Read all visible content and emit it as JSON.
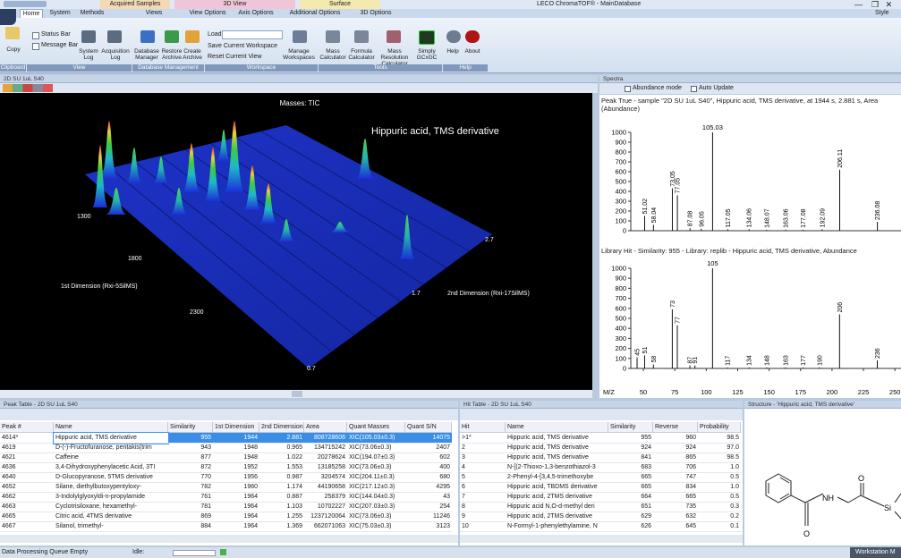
{
  "window": {
    "context_tabs": [
      "Acquired Samples",
      "3D View",
      "Surface"
    ],
    "app_title": "LECO ChromaTOF® - MainDatabase",
    "style": "Style"
  },
  "ribbon": {
    "tabs": [
      "Home",
      "System",
      "Methods",
      "Views",
      "View Options",
      "Axis Options",
      "Additional Options",
      "3D Options"
    ],
    "clipboard": {
      "label": "Clipboard",
      "copy": "Copy"
    },
    "view": {
      "label": "View",
      "status_bar": "Status Bar",
      "message_bar": "Message Bar",
      "system_log": "System Log",
      "acquisition_log": "Acquisition Log"
    },
    "database": {
      "label": "Database Management",
      "manager": "Database Manager",
      "restore": "Restore Archive",
      "create": "Create Archive"
    },
    "workspace": {
      "label": "Workspace",
      "load": "Load:",
      "save": "Save Current Workspace",
      "reset": "Reset Current View",
      "manage": "Manage Workspaces"
    },
    "tools": {
      "label": "Tools",
      "mass": "Mass Calculator",
      "formula": "Formula Calculator",
      "resolution": "Mass Resolution Calculator",
      "gcxgc": "Simply GCxGC"
    },
    "help": {
      "label": "Help",
      "help": "Help",
      "about": "About"
    }
  },
  "view3d": {
    "panel_title": "2D SU 1uL S40",
    "masses": "Masses: TIC",
    "annotation": "Hippuric acid, TMS derivative",
    "first_dim_label": "1st Dimension (Rxi-5SilMS)",
    "first_dim_ticks": [
      "1300",
      "1800",
      "2300"
    ],
    "second_dim_label": "2nd Dimension (Rxi-17SilMS)",
    "second_dim_ticks": [
      "2.7",
      "1.7",
      "0.7"
    ]
  },
  "spectra": {
    "panel_title": "Spectra",
    "abundance_mode": "Abundance mode",
    "auto_update": "Auto Update",
    "peak_true": {
      "title": "Peak True - sample \"2D SU 1uL S40\", Hippuric acid, TMS derivative, at 1944 s, 2.881 s, Area (Abundance)",
      "xlim": [
        40,
        252
      ],
      "ylim": [
        0,
        1000
      ],
      "yticks": [
        0,
        100,
        200,
        300,
        400,
        500,
        600,
        700,
        800,
        900,
        1000
      ],
      "peaks": {
        "x": [
          51.02,
          58.04,
          73.05,
          77.05,
          87.08,
          96.05,
          105.03,
          117.05,
          134.06,
          148.07,
          163.06,
          177.08,
          192.09,
          206.11,
          236.08
        ],
        "values": [
          150,
          60,
          430,
          360,
          25,
          20,
          1000,
          15,
          15,
          10,
          10,
          10,
          15,
          620,
          90
        ]
      }
    },
    "library_hit": {
      "title": "Library Hit - Similarity: 955 - Library: replib - Hippuric acid, TMS derivative, Abundance",
      "xlim": [
        40,
        252
      ],
      "ylim": [
        0,
        1000
      ],
      "yticks": [
        0,
        100,
        200,
        300,
        400,
        500,
        600,
        700,
        800,
        900,
        1000
      ],
      "x_label": "M/Z",
      "xticks": [
        50,
        75,
        100,
        125,
        150,
        175,
        200,
        225,
        250
      ],
      "peaks": {
        "x": [
          45,
          51,
          58,
          73,
          77,
          87,
          91,
          105,
          117,
          134,
          148,
          163,
          177,
          190,
          206,
          236
        ],
        "values": [
          110,
          130,
          40,
          590,
          430,
          30,
          30,
          1000,
          10,
          10,
          10,
          10,
          10,
          10,
          540,
          80
        ]
      }
    }
  },
  "peak_table": {
    "panel_title": "Peak Table - 2D SU 1uL S40",
    "columns": [
      "Peak #",
      "Name",
      "Similarity",
      "1st Dimension",
      "2nd Dimension",
      "Area",
      "Quant Masses",
      "Quant S/N"
    ],
    "rows": [
      [
        "4614*",
        "Hippuric acid, TMS derivative",
        "955",
        "1944",
        "2.881",
        "808728606",
        "XIC(105.03±0.3)",
        "14075"
      ],
      [
        "4619",
        "D-(-)-Fructofuranose, pentakis(trim",
        "943",
        "1948",
        "0.965",
        "134715242",
        "XIC(73.06±0.3)",
        "2407"
      ],
      [
        "4621",
        "Caffeine",
        "877",
        "1948",
        "1.022",
        "20278624",
        "XIC(194.07±0.3)",
        "602"
      ],
      [
        "4636",
        "3,4-Dihydroxyphenylacetic Acid, 3TI",
        "872",
        "1952",
        "1.553",
        "13185258",
        "XIC(73.06±0.3)",
        "400"
      ],
      [
        "4640",
        "D-Glucopyranose, 5TMS derivative",
        "770",
        "1956",
        "0.987",
        "3204574",
        "XIC(204.11±0.3)",
        "680"
      ],
      [
        "4652",
        "Silane, diethylbutoxypentyloxy-",
        "782",
        "1960",
        "1.174",
        "44190658",
        "XIC(217.12±0.3)",
        "4295"
      ],
      [
        "4662",
        "3-Indolylglyoxyldi-n-propylamide",
        "761",
        "1964",
        "0.887",
        "258379",
        "XIC(144.04±0.3)",
        "43"
      ],
      [
        "4663",
        "Cyclotrisiloxane, hexamethyl-",
        "781",
        "1964",
        "1.103",
        "10702227",
        "XIC(207.03±0.3)",
        "254"
      ],
      [
        "4665",
        "Citric acid, 4TMS derivative",
        "869",
        "1964",
        "1.255",
        "1237120064",
        "XIC(73.06±0.3)",
        "11246"
      ],
      [
        "4667",
        "Silanol, trimethyl-",
        "884",
        "1964",
        "1.369",
        "662071063",
        "XIC(75.03±0.3)",
        "3123"
      ]
    ]
  },
  "hit_table": {
    "panel_title": "Hit Table - 2D SU 1uL S40",
    "columns": [
      "Hit",
      "Name",
      "Similarity",
      "Reverse",
      "Probability"
    ],
    "rows": [
      [
        ">1*",
        "Hippuric acid, TMS derivative",
        "955",
        "960",
        "98.5"
      ],
      [
        "2",
        "Hippuric acid, TMS derivative",
        "924",
        "924",
        "97.0"
      ],
      [
        "3",
        "Hippuric acid, TMS derivative",
        "841",
        "865",
        "98.5"
      ],
      [
        "4",
        "N-[(2-Thioxo-1,3-benzothiazol-3",
        "683",
        "706",
        "1.0"
      ],
      [
        "5",
        "2-Phenyl-4-[3,4,5-trimethoxybe",
        "665",
        "747",
        "0.5"
      ],
      [
        "6",
        "Hippuric acid, TBDMS derivative",
        "665",
        "834",
        "1.0"
      ],
      [
        "7",
        "Hippuric acid, 2TMS derivative",
        "664",
        "665",
        "0.5"
      ],
      [
        "8",
        "Hippuric acid N,O-d-methyl deri",
        "651",
        "735",
        "0.3"
      ],
      [
        "9",
        "Hippuric acid, 2TMS derivative",
        "629",
        "632",
        "0.2"
      ],
      [
        "10",
        "N-Formyl-1-phenylethylamine, N",
        "626",
        "645",
        "0.1"
      ]
    ]
  },
  "structure": {
    "panel_title": "Structure - 'Hippuric acid, TMS derivative'",
    "atoms": [
      "O",
      "NH",
      "O",
      "Si"
    ]
  },
  "status_bar": {
    "queue": "Data Processing Queue Empty",
    "idle": "Idle:",
    "mode": "Workstation M"
  }
}
